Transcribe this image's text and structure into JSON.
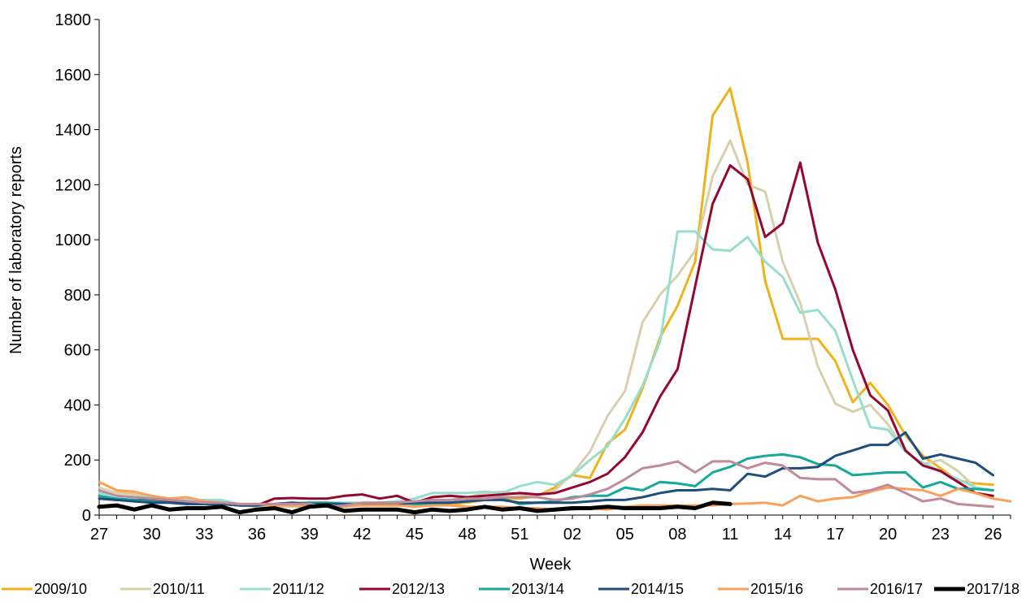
{
  "chart_data": {
    "type": "line",
    "title": "",
    "xlabel": "Week",
    "ylabel": "Number of laboratory reports",
    "ylim": [
      0,
      1800
    ],
    "yticks": [
      "0",
      "200",
      "400",
      "600",
      "800",
      "1000",
      "1200",
      "1400",
      "1600",
      "1800"
    ],
    "xtick_labels": [
      "27",
      "30",
      "33",
      "36",
      "39",
      "42",
      "45",
      "48",
      "51",
      "02",
      "05",
      "08",
      "11",
      "14",
      "17",
      "20",
      "23",
      "26"
    ],
    "x": [
      "27",
      "28",
      "29",
      "30",
      "31",
      "32",
      "33",
      "34",
      "35",
      "36",
      "37",
      "38",
      "39",
      "40",
      "41",
      "42",
      "43",
      "44",
      "45",
      "46",
      "47",
      "48",
      "49",
      "50",
      "51",
      "52",
      "01",
      "02",
      "03",
      "04",
      "05",
      "06",
      "07",
      "08",
      "09",
      "10",
      "11",
      "12",
      "13",
      "14",
      "15",
      "16",
      "17",
      "18",
      "19",
      "20",
      "21",
      "22",
      "23",
      "24",
      "25",
      "26",
      "27"
    ],
    "grid": false,
    "legend_position": "bottom",
    "series": [
      {
        "name": "2009/10",
        "color": "#F0B21B",
        "values": [
          120,
          90,
          80,
          65,
          60,
          55,
          45,
          45,
          40,
          35,
          35,
          35,
          38,
          40,
          40,
          40,
          35,
          35,
          35,
          35,
          40,
          45,
          55,
          60,
          60,
          70,
          100,
          145,
          135,
          260,
          310,
          460,
          645,
          760,
          920,
          1450,
          1550,
          1280,
          850,
          640,
          640,
          640,
          560,
          410,
          480,
          400,
          290,
          215,
          170,
          125,
          115,
          110,
          null
        ]
      },
      {
        "name": "2010/11",
        "color": "#D6D1AC",
        "values": [
          100,
          80,
          75,
          70,
          55,
          50,
          45,
          40,
          35,
          30,
          30,
          30,
          30,
          35,
          35,
          35,
          35,
          35,
          40,
          45,
          55,
          65,
          80,
          85,
          75,
          70,
          90,
          150,
          230,
          360,
          450,
          700,
          800,
          870,
          960,
          1230,
          1360,
          1200,
          1175,
          920,
          770,
          540,
          405,
          375,
          400,
          330,
          230,
          185,
          200,
          160,
          100,
          90,
          null
        ]
      },
      {
        "name": "2011/12",
        "color": "#97DECF",
        "values": [
          80,
          70,
          65,
          65,
          60,
          55,
          55,
          55,
          40,
          40,
          40,
          45,
          45,
          45,
          45,
          45,
          45,
          50,
          60,
          80,
          80,
          80,
          85,
          80,
          105,
          120,
          110,
          145,
          200,
          250,
          350,
          470,
          630,
          1030,
          1030,
          965,
          960,
          1010,
          920,
          865,
          735,
          745,
          670,
          490,
          320,
          310,
          230,
          190,
          160,
          130,
          100,
          90,
          null
        ]
      },
      {
        "name": "2012/13",
        "color": "#94082F",
        "values": [
          60,
          55,
          55,
          55,
          50,
          45,
          40,
          40,
          35,
          35,
          60,
          62,
          60,
          60,
          70,
          75,
          60,
          70,
          45,
          65,
          70,
          65,
          70,
          75,
          80,
          75,
          80,
          100,
          120,
          150,
          210,
          300,
          430,
          530,
          830,
          1130,
          1270,
          1220,
          1010,
          1060,
          1280,
          990,
          820,
          600,
          435,
          380,
          235,
          180,
          160,
          120,
          80,
          70,
          null
        ]
      },
      {
        "name": "2013/14",
        "color": "#14A99A",
        "values": [
          70,
          60,
          55,
          50,
          45,
          40,
          40,
          40,
          35,
          35,
          40,
          40,
          45,
          45,
          40,
          40,
          45,
          45,
          40,
          40,
          45,
          50,
          55,
          60,
          40,
          45,
          50,
          65,
          70,
          70,
          100,
          90,
          120,
          115,
          105,
          155,
          175,
          205,
          215,
          220,
          210,
          185,
          180,
          145,
          150,
          155,
          155,
          100,
          120,
          95,
          95,
          90,
          null
        ]
      },
      {
        "name": "2014/15",
        "color": "#1F4E7E",
        "values": [
          60,
          55,
          50,
          45,
          45,
          40,
          40,
          40,
          35,
          35,
          40,
          45,
          40,
          40,
          40,
          40,
          40,
          40,
          45,
          45,
          45,
          50,
          55,
          55,
          45,
          45,
          45,
          45,
          50,
          55,
          55,
          65,
          80,
          90,
          90,
          95,
          90,
          150,
          140,
          170,
          170,
          175,
          215,
          235,
          255,
          255,
          300,
          205,
          220,
          205,
          190,
          145,
          null
        ]
      },
      {
        "name": "2015/16",
        "color": "#F9A15A",
        "values": [
          120,
          90,
          85,
          70,
          60,
          65,
          50,
          45,
          40,
          40,
          35,
          35,
          30,
          35,
          30,
          35,
          35,
          35,
          30,
          35,
          35,
          30,
          30,
          30,
          25,
          25,
          20,
          20,
          25,
          20,
          30,
          35,
          35,
          35,
          35,
          35,
          40,
          42,
          45,
          35,
          70,
          50,
          60,
          65,
          85,
          100,
          95,
          90,
          70,
          95,
          80,
          60,
          50
        ]
      },
      {
        "name": "2016/17",
        "color": "#C08B99",
        "values": [
          90,
          70,
          65,
          60,
          55,
          50,
          45,
          45,
          40,
          40,
          40,
          40,
          40,
          30,
          35,
          45,
          45,
          45,
          50,
          55,
          55,
          60,
          60,
          65,
          65,
          65,
          55,
          60,
          75,
          95,
          130,
          170,
          180,
          195,
          155,
          195,
          195,
          170,
          190,
          180,
          135,
          130,
          130,
          80,
          90,
          110,
          80,
          50,
          60,
          40,
          35,
          30,
          null
        ]
      },
      {
        "name": "2017/18",
        "color": "#000000",
        "values": [
          30,
          35,
          20,
          35,
          20,
          25,
          25,
          30,
          10,
          20,
          25,
          10,
          30,
          35,
          15,
          20,
          20,
          20,
          10,
          20,
          15,
          20,
          30,
          20,
          25,
          15,
          20,
          25,
          25,
          30,
          25,
          25,
          25,
          30,
          25,
          45,
          40,
          null,
          null,
          null,
          null,
          null,
          null,
          null,
          null,
          null,
          null,
          null,
          null,
          null,
          null,
          null,
          null
        ]
      }
    ]
  }
}
